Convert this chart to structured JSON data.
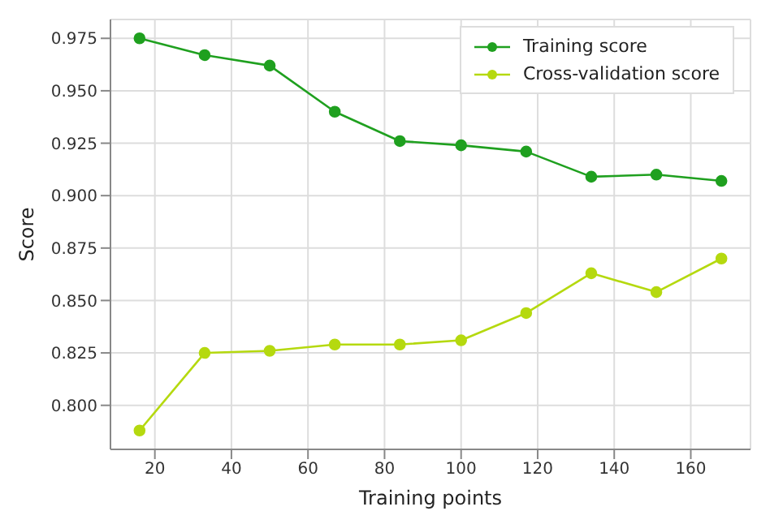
{
  "chart_data": {
    "type": "line",
    "xlabel": "Training points",
    "ylabel": "Score",
    "x": [
      16,
      33,
      50,
      67,
      84,
      100,
      117,
      134,
      151,
      168
    ],
    "series": [
      {
        "name": "Training score",
        "color": "#1fa01f",
        "values": [
          0.975,
          0.967,
          0.962,
          0.94,
          0.926,
          0.924,
          0.921,
          0.909,
          0.91,
          0.907
        ]
      },
      {
        "name": "Cross-validation score",
        "color": "#b5d90f",
        "values": [
          0.788,
          0.825,
          0.826,
          0.829,
          0.829,
          0.831,
          0.844,
          0.863,
          0.854,
          0.87
        ]
      }
    ],
    "xlim": [
      8.4,
      175.6
    ],
    "xticks": [
      20,
      40,
      60,
      80,
      100,
      120,
      140,
      160
    ],
    "ylim": [
      0.779,
      0.984
    ],
    "yticks": [
      {
        "value": 0.8,
        "label": "0.800"
      },
      0.825,
      {
        "value": 0.85,
        "label": "0.850"
      },
      0.875,
      {
        "value": 0.9,
        "label": "0.900"
      },
      0.925,
      {
        "value": 0.95,
        "label": "0.950"
      },
      0.975
    ],
    "grid": true,
    "legend": "top right",
    "marker": "circle",
    "line_style": "solid"
  }
}
